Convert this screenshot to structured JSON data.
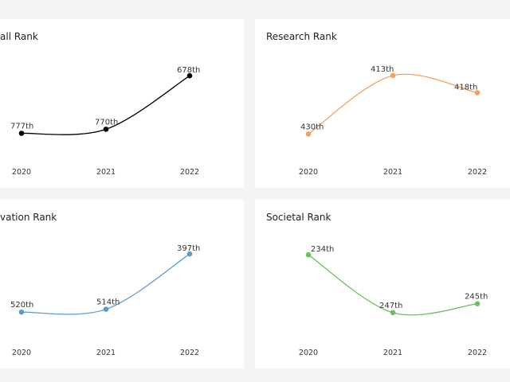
{
  "chart_data": [
    {
      "type": "line",
      "title": "all Rank",
      "categories": [
        "2020",
        "2021",
        "2022"
      ],
      "series": [
        {
          "values": [
            777,
            770,
            678
          ],
          "labels": [
            "777th",
            "770th",
            "678th"
          ]
        }
      ],
      "color": "#000000",
      "reversed_y": true,
      "ylim": [
        660,
        790
      ],
      "grid": false
    },
    {
      "type": "line",
      "title": "Research Rank",
      "categories": [
        "2020",
        "2021",
        "2022"
      ],
      "series": [
        {
          "values": [
            430,
            413,
            418
          ],
          "labels": [
            "430th",
            "413th",
            "418th"
          ]
        }
      ],
      "color": "#f0a35e",
      "reversed_y": true,
      "ylim": [
        410,
        432
      ],
      "grid": false
    },
    {
      "type": "line",
      "title": "vation Rank",
      "categories": [
        "2020",
        "2021",
        "2022"
      ],
      "series": [
        {
          "values": [
            520,
            514,
            397
          ],
          "labels": [
            "520th",
            "514th",
            "397th"
          ]
        }
      ],
      "color": "#5b9bd5",
      "reversed_y": true,
      "ylim": [
        380,
        540
      ],
      "grid": false
    },
    {
      "type": "line",
      "title": "Societal Rank",
      "categories": [
        "2020",
        "2021",
        "2022"
      ],
      "series": [
        {
          "values": [
            234,
            247,
            245
          ],
          "labels": [
            "234th",
            "247th",
            "245th"
          ]
        }
      ],
      "color": "#70bf5e",
      "reversed_y": true,
      "ylim": [
        232,
        249
      ],
      "grid": false
    }
  ]
}
